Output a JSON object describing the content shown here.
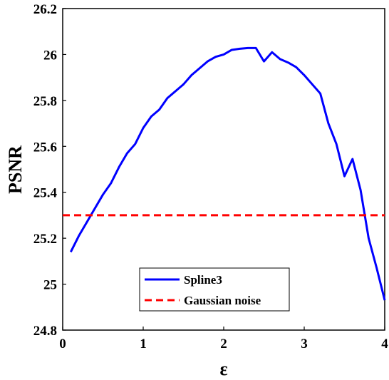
{
  "chart_data": {
    "type": "line",
    "title": "",
    "xlabel": "ε",
    "ylabel": "PSNR",
    "xlim": [
      0,
      4
    ],
    "ylim": [
      24.8,
      26.2
    ],
    "xticks": [
      "0",
      "1",
      "2",
      "3",
      "4"
    ],
    "yticks": [
      "24.8",
      "25",
      "25.2",
      "25.4",
      "25.6",
      "25.8",
      "26",
      "26.2"
    ],
    "grid": false,
    "legend_position": "bottom-center",
    "series": [
      {
        "name": "Spline3",
        "color": "#0000ff",
        "style": "solid",
        "x": [
          0.1,
          0.2,
          0.3,
          0.4,
          0.5,
          0.6,
          0.7,
          0.8,
          0.9,
          1.0,
          1.1,
          1.2,
          1.3,
          1.4,
          1.5,
          1.6,
          1.7,
          1.8,
          1.9,
          2.0,
          2.1,
          2.2,
          2.3,
          2.4,
          2.5,
          2.6,
          2.7,
          2.8,
          2.9,
          3.0,
          3.1,
          3.2,
          3.3,
          3.4,
          3.5,
          3.6,
          3.7,
          3.8,
          3.9,
          4.0
        ],
        "y": [
          25.14,
          25.21,
          25.27,
          25.33,
          25.39,
          25.44,
          25.51,
          25.57,
          25.61,
          25.68,
          25.73,
          25.76,
          25.81,
          25.84,
          25.87,
          25.91,
          25.94,
          25.97,
          25.99,
          26.0,
          26.02,
          26.025,
          26.028,
          26.028,
          25.97,
          26.01,
          25.98,
          25.965,
          25.945,
          25.91,
          25.87,
          25.83,
          25.7,
          25.61,
          25.47,
          25.545,
          25.41,
          25.2,
          25.07,
          24.93
        ]
      },
      {
        "name": "Gaussian noise",
        "color": "#ff0000",
        "style": "dashed",
        "x": [
          0,
          4
        ],
        "y": [
          25.3,
          25.3
        ]
      }
    ]
  }
}
